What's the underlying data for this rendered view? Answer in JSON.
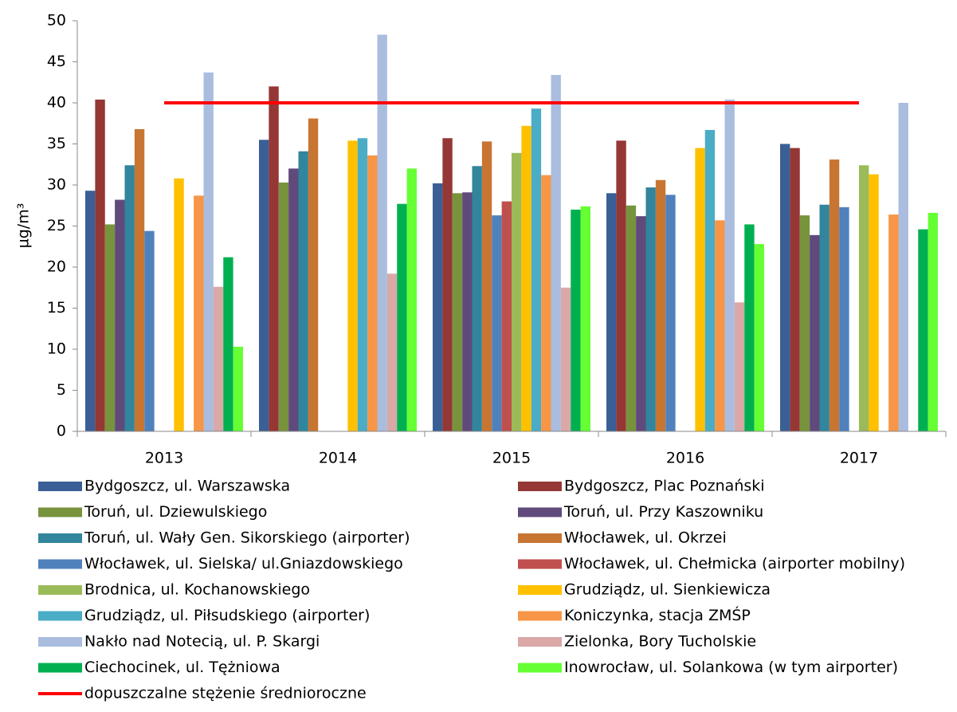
{
  "chart_data": {
    "type": "bar",
    "y_label": "µg/m³",
    "categories": [
      "2013",
      "2014",
      "2015",
      "2016",
      "2017"
    ],
    "ylim": [
      0,
      50
    ],
    "yticks": [
      0,
      5,
      10,
      15,
      20,
      25,
      30,
      35,
      40,
      45,
      50
    ],
    "series": [
      {
        "name": "Bydgoszcz, ul. Warszawska",
        "color": "#3a5f96",
        "values": [
          29.3,
          35.5,
          30.2,
          29,
          35
        ]
      },
      {
        "name": "Bydgoszcz, Plac Poznański",
        "color": "#953735",
        "values": [
          40.4,
          42,
          35.7,
          35.4,
          34.5
        ]
      },
      {
        "name": "Toruń, ul. Dziewulskiego",
        "color": "#77933c",
        "values": [
          25.2,
          30.3,
          29,
          27.5,
          26.3
        ]
      },
      {
        "name": "Toruń, ul. Przy Kaszowniku",
        "color": "#604a7b",
        "values": [
          28.2,
          32,
          29.1,
          26.2,
          23.9
        ]
      },
      {
        "name": "Toruń, ul. Wały Gen. Sikorskiego (airporter)",
        "color": "#31859c",
        "values": [
          32.4,
          34.1,
          32.3,
          29.7,
          27.6
        ]
      },
      {
        "name": "Włocławek, ul. Okrzei",
        "color": "#c87532",
        "values": [
          36.8,
          38.1,
          35.3,
          30.6,
          33.1
        ]
      },
      {
        "name": "Włocławek, ul. Sielska/ ul.Gniazdowskiego",
        "color": "#4f81bd",
        "values": [
          24.4,
          null,
          26.3,
          28.8,
          27.3
        ]
      },
      {
        "name": "Włocławek, ul. Chełmicka (airporter mobilny)",
        "color": "#c0504d",
        "values": [
          null,
          null,
          28,
          null,
          null
        ]
      },
      {
        "name": "Brodnica, ul. Kochanowskiego",
        "color": "#9bbb59",
        "values": [
          null,
          null,
          33.9,
          null,
          32.4
        ]
      },
      {
        "name": "Grudziądz, ul. Sienkiewicza",
        "color": "#ffc000",
        "values": [
          30.8,
          35.4,
          37.2,
          34.5,
          31.3
        ]
      },
      {
        "name": "Grudziądz, ul. Piłsudskiego (airporter)",
        "color": "#4bacc6",
        "values": [
          null,
          35.7,
          39.3,
          36.7,
          null
        ]
      },
      {
        "name": "Koniczynka, stacja ZMŚP",
        "color": "#f79646",
        "values": [
          28.7,
          33.6,
          31.2,
          25.7,
          26.4
        ]
      },
      {
        "name": "Nakło nad Notecią, ul. P. Skargi",
        "color": "#aabddf",
        "values": [
          43.7,
          48.3,
          43.4,
          40.4,
          40
        ]
      },
      {
        "name": "Zielonka, Bory Tucholskie",
        "color": "#d9a8a7",
        "values": [
          17.6,
          19.2,
          17.5,
          15.7,
          null
        ]
      },
      {
        "name": "Ciechocinek, ul. Tężniowa",
        "color": "#00b050",
        "values": [
          21.2,
          27.7,
          27,
          25.2,
          24.6
        ]
      },
      {
        "name": "Inowrocław, ul. Solankowa (w tym airporter)",
        "color": "#66ff33",
        "values": [
          10.3,
          32,
          27.4,
          22.8,
          26.6
        ]
      }
    ],
    "limit_line": {
      "name": "dopuszczalne stężenie średnioroczne",
      "value": 40,
      "color": "#ff0000"
    }
  }
}
